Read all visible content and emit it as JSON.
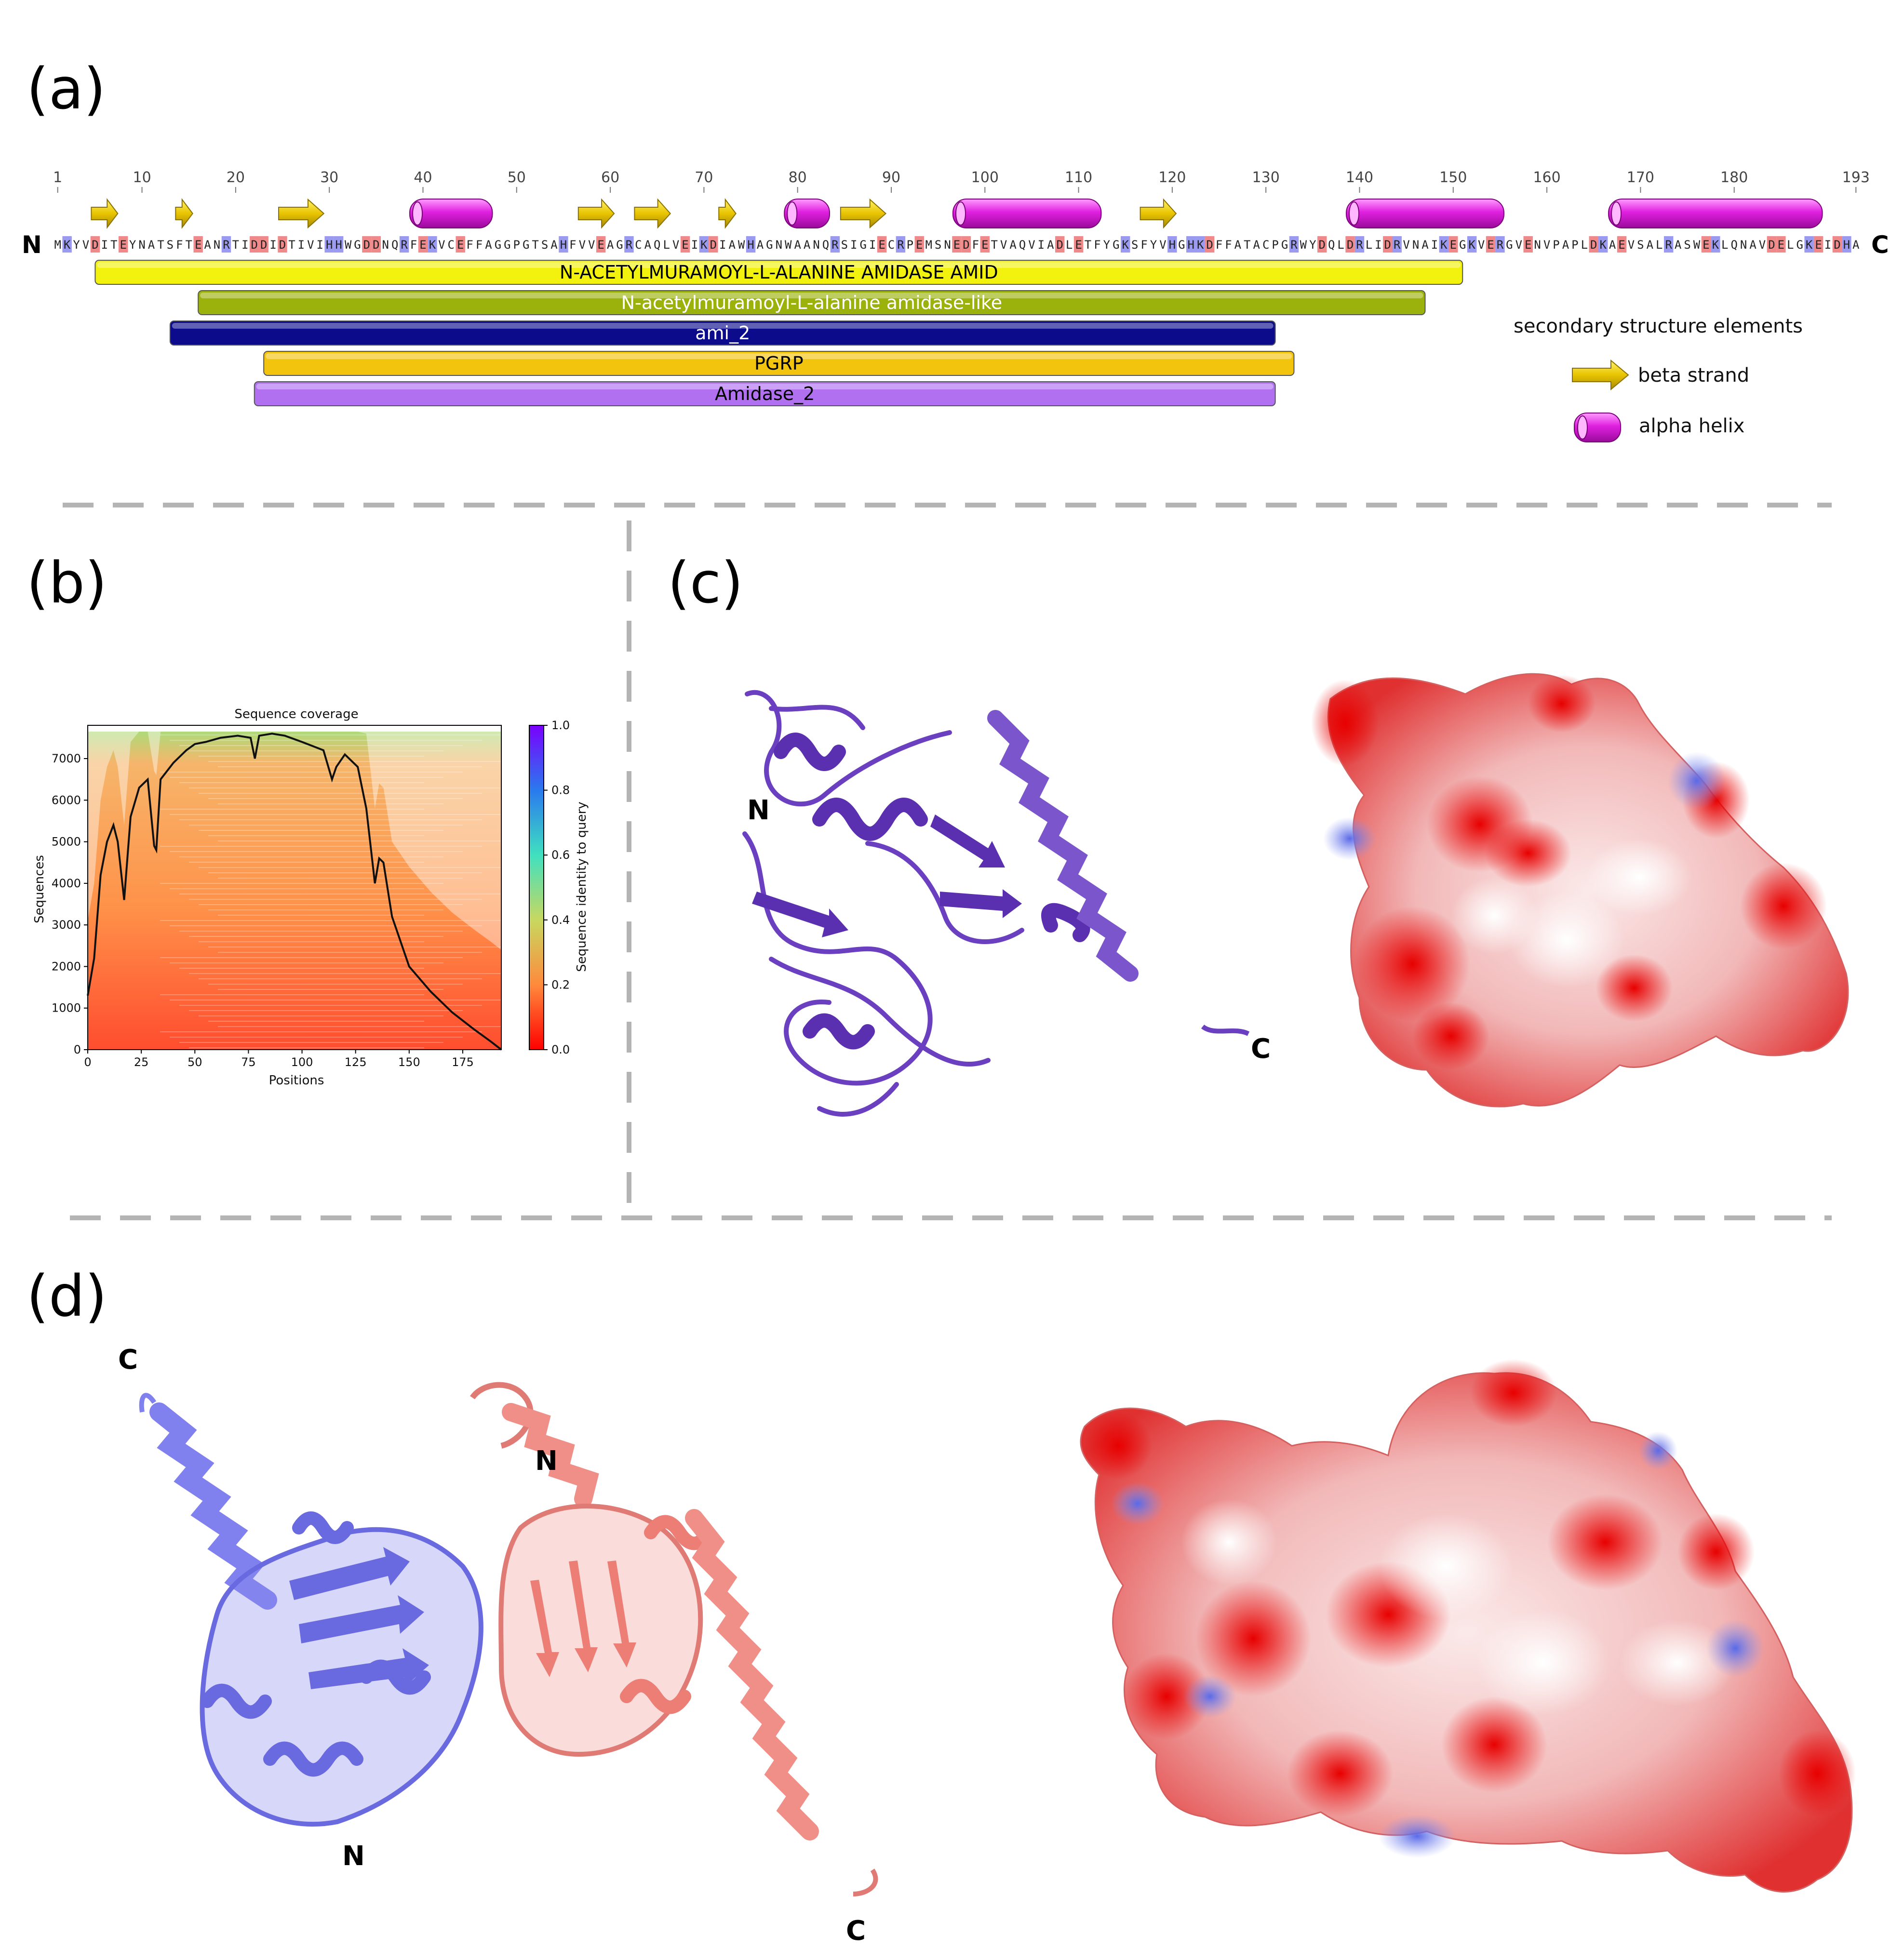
{
  "panels": {
    "a": "(a)",
    "b": "(b)",
    "c": "(c)",
    "d": "(d)"
  },
  "panel_a": {
    "n_terminus": "N",
    "c_terminus": "C",
    "ruler_ticks": [
      1,
      10,
      20,
      30,
      40,
      50,
      60,
      70,
      80,
      90,
      100,
      110,
      120,
      130,
      140,
      150,
      160,
      170,
      180,
      193
    ],
    "sequence": "MKYVDITEYNATSFTEANRTIDDIDTIVIHHWGDDNQRFEKVCEFFAGGPGTSAHFVVEAGRCAQLVEIKDIAWHAGNWAANQRSIGIECRPEMSNEDFETVAQVIADLETFYGKSFYVHGHKDFFATACPGRWYDQLDRLIDRVNAIKEGKVERGVENVPAPLDKAEVSALRASWEKLQNAVDELGKEIDHA",
    "sequence_length": 193,
    "beta_strands": [
      [
        5,
        7
      ],
      [
        14,
        15
      ],
      [
        25,
        29
      ],
      [
        57,
        60
      ],
      [
        63,
        66
      ],
      [
        72,
        73
      ],
      [
        85,
        89
      ],
      [
        117,
        120
      ]
    ],
    "alpha_helices": [
      [
        39,
        47
      ],
      [
        79,
        83
      ],
      [
        97,
        112
      ],
      [
        139,
        155
      ],
      [
        167,
        189
      ]
    ],
    "domains": [
      {
        "label": "N-ACETYLMURAMOYL-L-ALANINE AMIDASE AMID",
        "start": 5,
        "end": 151,
        "color": "#f2f20e",
        "text_color": "#000000"
      },
      {
        "label": "N-acetylmuramoyl-L-alanine amidase-like",
        "start": 16,
        "end": 147,
        "color": "#9cb20c",
        "text_color": "#ffffff"
      },
      {
        "label": "ami_2",
        "start": 13,
        "end": 131,
        "color": "#0b0b8c",
        "text_color": "#ffffff"
      },
      {
        "label": "PGRP",
        "start": 23,
        "end": 133,
        "color": "#f2c40e",
        "text_color": "#000000"
      },
      {
        "label": "Amidase_2",
        "start": 22,
        "end": 131,
        "color": "#b070f0",
        "text_color": "#000000"
      }
    ],
    "legend": {
      "title": "secondary structure elements",
      "beta_label": "beta strand",
      "helix_label": "alpha helix"
    }
  },
  "panel_b": {
    "chart_data": {
      "type": "line",
      "title": "Sequence coverage",
      "xlabel": "Positions",
      "ylabel": "Sequences",
      "xlim": [
        0,
        193
      ],
      "ylim": [
        0,
        7800
      ],
      "xticks": [
        0,
        25,
        50,
        75,
        100,
        125,
        150,
        175
      ],
      "yticks": [
        0,
        1000,
        2000,
        3000,
        4000,
        5000,
        6000,
        7000
      ],
      "colorbar_label": "Sequence identity to query",
      "colorbar_ticks": [
        0.0,
        0.2,
        0.4,
        0.6,
        0.8,
        1.0
      ],
      "series": [
        {
          "name": "coverage",
          "x": [
            0,
            3,
            6,
            9,
            12,
            14,
            17,
            20,
            24,
            28,
            31,
            32,
            34,
            40,
            46,
            50,
            55,
            62,
            70,
            76,
            78,
            80,
            86,
            92,
            100,
            110,
            114,
            116,
            120,
            126,
            130,
            134,
            136,
            138,
            142,
            150,
            160,
            170,
            180,
            188,
            193
          ],
          "y": [
            1300,
            2200,
            4200,
            5000,
            5400,
            5000,
            3600,
            5600,
            6300,
            6500,
            4900,
            4800,
            6500,
            6900,
            7200,
            7350,
            7400,
            7500,
            7550,
            7500,
            7000,
            7550,
            7600,
            7550,
            7400,
            7200,
            6500,
            6800,
            7100,
            6800,
            5800,
            4000,
            4600,
            4500,
            3200,
            2000,
            1400,
            900,
            500,
            200,
            0
          ]
        }
      ]
    }
  },
  "panel_c": {
    "n_label": "N",
    "c_label": "C"
  },
  "panel_d": {
    "chain_a_n": "N",
    "chain_a_c": "C",
    "chain_b_n": "N",
    "chain_b_c": "C"
  }
}
